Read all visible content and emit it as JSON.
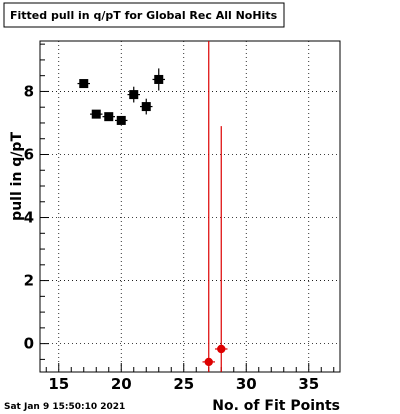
{
  "title": "Fitted pull in q/pT for Global Rec All NoHits",
  "timestamp": "Sat Jan  9 15:50:10 2021",
  "chart_data": {
    "type": "scatter",
    "xlabel": "No. of Fit Points",
    "ylabel": "pull in q/pT",
    "xlim": [
      13.5,
      37.5
    ],
    "ylim": [
      -0.9,
      9.6
    ],
    "xticks": [
      "15",
      "20",
      "25",
      "30",
      "35"
    ],
    "yticks": [
      "0",
      "2",
      "4",
      "6",
      "8"
    ],
    "grid": true,
    "series": [
      {
        "color": "#000000",
        "marker": "square",
        "x": [
          17,
          18,
          19,
          20,
          21,
          22,
          23
        ],
        "y": [
          8.25,
          7.28,
          7.2,
          7.08,
          7.9,
          7.52,
          8.38
        ],
        "yerr_low": [
          0.1,
          0.1,
          0.1,
          0.1,
          0.25,
          0.25,
          0.35
        ],
        "yerr_high": [
          0.1,
          0.1,
          0.1,
          0.1,
          0.25,
          0.25,
          0.35
        ]
      },
      {
        "color": "#dd0000",
        "marker": "circle",
        "x": [
          27,
          28
        ],
        "y": [
          -0.58,
          -0.17
        ],
        "yerr_low": [
          0.32,
          0.73
        ],
        "yerr_high": [
          10.18,
          7.07
        ]
      }
    ]
  }
}
